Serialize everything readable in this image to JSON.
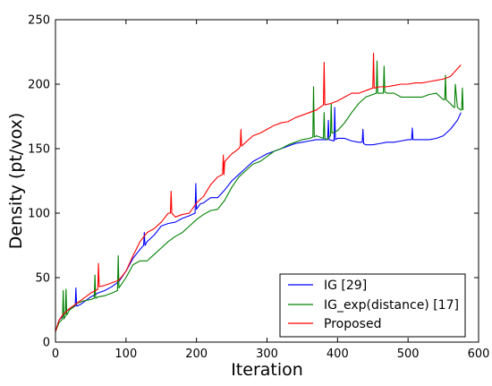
{
  "chart_data": {
    "type": "line",
    "xlabel": "Iteration",
    "ylabel": "Density (pt/vox)",
    "xlim": [
      0,
      600
    ],
    "ylim": [
      0,
      250
    ],
    "xticks": [
      0,
      100,
      200,
      300,
      400,
      500,
      600
    ],
    "yticks": [
      0,
      50,
      100,
      150,
      200,
      250
    ],
    "xtick_labels": [
      "0",
      "100",
      "200",
      "300",
      "400",
      "500",
      "600"
    ],
    "ytick_labels": [
      "0",
      "50",
      "100",
      "150",
      "200",
      "250"
    ],
    "grid": false,
    "legend_position": "bottom-right",
    "series": [
      {
        "name": "IG [29]",
        "color": "#0000ff",
        "x": [
          0,
          5,
          10,
          15,
          20,
          25,
          28,
          29,
          30,
          35,
          40,
          50,
          60,
          70,
          80,
          90,
          100,
          110,
          120,
          125,
          126,
          127,
          130,
          140,
          150,
          160,
          170,
          180,
          190,
          198,
          199,
          200,
          205,
          210,
          220,
          230,
          240,
          250,
          260,
          270,
          280,
          290,
          300,
          310,
          320,
          330,
          340,
          350,
          360,
          370,
          380,
          386,
          387,
          388,
          395,
          396,
          397,
          400,
          410,
          420,
          430,
          435,
          436,
          437,
          440,
          450,
          460,
          470,
          480,
          490,
          500,
          505,
          506,
          507,
          510,
          520,
          530,
          540,
          550,
          560,
          570,
          575
        ],
        "y": [
          8,
          17,
          20,
          24,
          26,
          27,
          28,
          42,
          28,
          29,
          31,
          35,
          38,
          40,
          43,
          47,
          55,
          65,
          72,
          75,
          85,
          75,
          78,
          83,
          90,
          92,
          93,
          96,
          98,
          100,
          123,
          103,
          107,
          108,
          112,
          112,
          118,
          125,
          130,
          135,
          140,
          143,
          146,
          148,
          150,
          152,
          154,
          155,
          156,
          157,
          157,
          157,
          172,
          157,
          156,
          182,
          157,
          158,
          158,
          156,
          155,
          155,
          165,
          154,
          153,
          153,
          154,
          155,
          155,
          156,
          157,
          157,
          166,
          157,
          157,
          157,
          157,
          158,
          160,
          165,
          172,
          178
        ]
      },
      {
        "name": "IG_exp(distance) [17]",
        "color": "#008000",
        "x": [
          0,
          5,
          10,
          11,
          12,
          14,
          15,
          16,
          18,
          20,
          25,
          30,
          40,
          50,
          55,
          56,
          57,
          60,
          70,
          80,
          88,
          89,
          90,
          100,
          110,
          120,
          130,
          140,
          150,
          160,
          170,
          180,
          190,
          200,
          210,
          220,
          230,
          240,
          250,
          260,
          270,
          280,
          290,
          300,
          310,
          320,
          330,
          340,
          350,
          360,
          365,
          366,
          367,
          370,
          380,
          381,
          382,
          385,
          390,
          391,
          392,
          400,
          410,
          420,
          430,
          440,
          450,
          455,
          456,
          457,
          460,
          465,
          466,
          467,
          470,
          480,
          490,
          500,
          510,
          520,
          530,
          540,
          550,
          552,
          553,
          554,
          560,
          565,
          566,
          567,
          570,
          575,
          576,
          577,
          578
        ],
        "y": [
          8,
          15,
          18,
          40,
          18,
          20,
          41,
          21,
          23,
          25,
          27,
          30,
          32,
          33,
          34,
          52,
          34,
          35,
          36,
          38,
          40,
          67,
          42,
          50,
          60,
          63,
          63,
          68,
          73,
          78,
          82,
          85,
          90,
          95,
          99,
          102,
          103,
          110,
          120,
          128,
          133,
          138,
          140,
          144,
          148,
          150,
          153,
          155,
          157,
          158,
          159,
          198,
          159,
          160,
          158,
          178,
          158,
          157,
          160,
          185,
          162,
          164,
          170,
          178,
          185,
          190,
          192,
          193,
          218,
          193,
          193,
          193,
          214,
          194,
          193,
          193,
          190,
          190,
          190,
          190,
          192,
          193,
          188,
          188,
          207,
          188,
          185,
          182,
          182,
          200,
          182,
          180,
          180,
          197,
          180
        ]
      },
      {
        "name": "Proposed",
        "color": "#ff0000",
        "x": [
          0,
          5,
          10,
          20,
          30,
          40,
          50,
          60,
          61,
          62,
          70,
          80,
          90,
          100,
          110,
          120,
          130,
          140,
          150,
          160,
          163,
          164,
          165,
          170,
          180,
          190,
          200,
          210,
          220,
          230,
          237,
          238,
          239,
          240,
          250,
          260,
          262,
          263,
          264,
          270,
          280,
          290,
          300,
          310,
          320,
          330,
          340,
          350,
          360,
          370,
          380,
          381,
          382,
          390,
          400,
          410,
          420,
          430,
          440,
          450,
          451,
          452,
          460,
          470,
          480,
          490,
          500,
          510,
          520,
          530,
          540,
          550,
          560,
          570,
          575
        ],
        "y": [
          8,
          17,
          21,
          26,
          30,
          34,
          38,
          41,
          61,
          43,
          44,
          46,
          48,
          55,
          67,
          78,
          85,
          88,
          93,
          100,
          100,
          117,
          100,
          97,
          99,
          100,
          108,
          113,
          122,
          128,
          130,
          145,
          130,
          140,
          146,
          150,
          152,
          165,
          152,
          155,
          160,
          162,
          165,
          168,
          170,
          171,
          174,
          176,
          178,
          180,
          184,
          217,
          184,
          185,
          187,
          190,
          193,
          193,
          195,
          197,
          224,
          197,
          198,
          198,
          199,
          200,
          200,
          201,
          201,
          202,
          203,
          204,
          206,
          212,
          215
        ]
      }
    ]
  }
}
